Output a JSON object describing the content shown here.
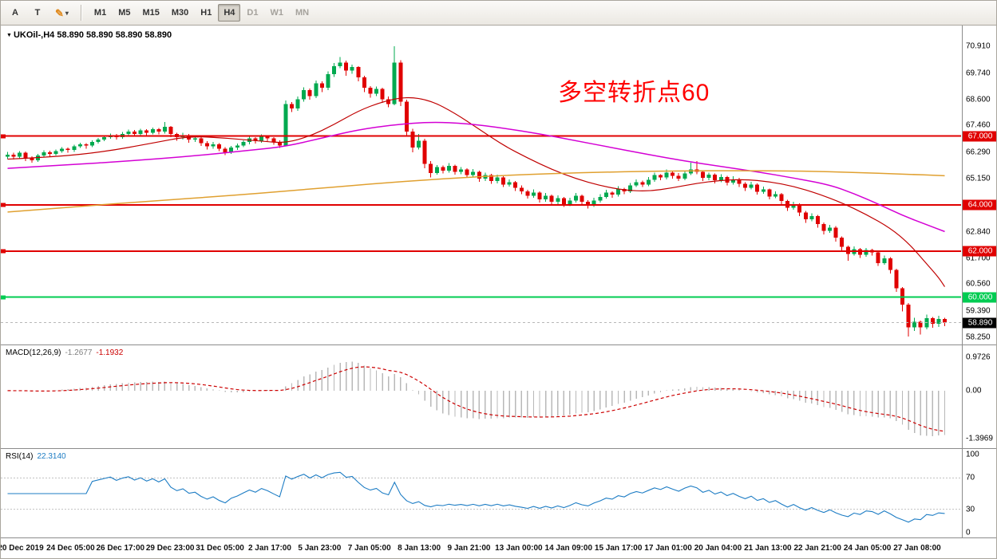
{
  "toolbar": {
    "text_tool_label": "A",
    "cursor_tool_label": "T",
    "icons": {
      "crayon": "✎",
      "dropdown_arrow": "▾",
      "symbol_dropdown": "▼"
    },
    "timeframes": [
      "M1",
      "M5",
      "M15",
      "M30",
      "H1",
      "H4",
      "D1",
      "W1",
      "MN"
    ],
    "active_timeframe": "H4",
    "muted_timeframes": [
      "D1",
      "W1",
      "MN"
    ]
  },
  "chart": {
    "symbol_ohlc_label": "UKOil-,H4  58.890 58.890 58.890 58.890"
  },
  "colors": {
    "bull": "#00a94f",
    "bear": "#e00000",
    "hline_red": "#e00000",
    "hline_green": "#00cc52",
    "current_badge_bg": "#000000",
    "current_line": "#b8b8b8",
    "annotation": "#ff0000",
    "macd_hist": "#b8b8b8",
    "macd_signal": "#cc0000",
    "rsi_line": "#1c7cc4",
    "rsi_level": "#c0c0c0"
  },
  "chart_data": {
    "type": "candlestick",
    "symbol": "UKOil-",
    "timeframe": "H4",
    "annotation": {
      "text": "多空转折点60",
      "color": "#ff0000"
    },
    "price_axis": {
      "min": 58.25,
      "max": 70.91,
      "ticks": [
        "70.910",
        "69.740",
        "68.600",
        "67.460",
        "66.290",
        "65.150",
        "64.000",
        "62.840",
        "61.700",
        "60.560",
        "59.390",
        "58.250"
      ]
    },
    "time_axis": [
      "20 Dec 2019",
      "24 Dec 05:00",
      "26 Dec 17:00",
      "29 Dec 23:00",
      "31 Dec 05:00",
      "2 Jan 17:00",
      "5 Jan 23:00",
      "7 Jan 05:00",
      "8 Jan 13:00",
      "9 Jan 21:00",
      "13 Jan 00:00",
      "14 Jan 09:00",
      "15 Jan 17:00",
      "17 Jan 01:00",
      "20 Jan 04:00",
      "21 Jan 13:00",
      "22 Jan 21:00",
      "24 Jan 05:00",
      "27 Jan 08:00"
    ],
    "hlines": [
      {
        "price": 67.0,
        "label": "67.000",
        "color": "#e00000"
      },
      {
        "price": 64.0,
        "label": "64.000",
        "color": "#e00000"
      },
      {
        "price": 62.0,
        "label": "62.000",
        "color": "#e00000"
      },
      {
        "price": 60.0,
        "label": "60.000",
        "color": "#00cc52"
      }
    ],
    "current_price": {
      "value": 58.89,
      "label": "58.890"
    },
    "moving_averages": [
      {
        "name": "ma-fast-red",
        "color": "#c00000",
        "width": 1.2,
        "points": [
          [
            0,
            66.0
          ],
          [
            8,
            66.1
          ],
          [
            16,
            66.32
          ],
          [
            24,
            66.7
          ],
          [
            30,
            67.0
          ],
          [
            36,
            66.92
          ],
          [
            42,
            66.78
          ],
          [
            46,
            66.7
          ],
          [
            50,
            67.0
          ],
          [
            54,
            67.5
          ],
          [
            58,
            68.1
          ],
          [
            62,
            68.5
          ],
          [
            66,
            68.72
          ],
          [
            70,
            68.55
          ],
          [
            74,
            68.0
          ],
          [
            78,
            67.3
          ],
          [
            82,
            66.6
          ],
          [
            86,
            66.05
          ],
          [
            90,
            65.55
          ],
          [
            94,
            65.15
          ],
          [
            98,
            64.85
          ],
          [
            102,
            64.65
          ],
          [
            106,
            64.6
          ],
          [
            110,
            64.75
          ],
          [
            114,
            64.95
          ],
          [
            118,
            65.08
          ],
          [
            122,
            65.12
          ],
          [
            126,
            65.02
          ],
          [
            130,
            64.82
          ],
          [
            134,
            64.5
          ],
          [
            138,
            64.1
          ],
          [
            142,
            63.6
          ],
          [
            146,
            63.0
          ],
          [
            149,
            62.35
          ],
          [
            152,
            61.45
          ],
          [
            154,
            60.85
          ],
          [
            155,
            60.45
          ]
        ]
      },
      {
        "name": "ma-mid-magenta",
        "color": "#d400d4",
        "width": 1.5,
        "points": [
          [
            0,
            65.6
          ],
          [
            10,
            65.75
          ],
          [
            20,
            65.92
          ],
          [
            30,
            66.12
          ],
          [
            40,
            66.38
          ],
          [
            46,
            66.55
          ],
          [
            52,
            66.92
          ],
          [
            58,
            67.28
          ],
          [
            64,
            67.5
          ],
          [
            70,
            67.62
          ],
          [
            76,
            67.55
          ],
          [
            82,
            67.35
          ],
          [
            88,
            67.1
          ],
          [
            94,
            66.8
          ],
          [
            100,
            66.5
          ],
          [
            106,
            66.2
          ],
          [
            112,
            65.92
          ],
          [
            118,
            65.68
          ],
          [
            124,
            65.45
          ],
          [
            130,
            65.18
          ],
          [
            136,
            64.88
          ],
          [
            140,
            64.5
          ],
          [
            144,
            64.05
          ],
          [
            148,
            63.55
          ],
          [
            152,
            63.15
          ],
          [
            155,
            62.85
          ]
        ]
      },
      {
        "name": "ma-slow-orange",
        "color": "#e0a030",
        "width": 1.5,
        "points": [
          [
            0,
            63.7
          ],
          [
            12,
            63.95
          ],
          [
            24,
            64.18
          ],
          [
            36,
            64.4
          ],
          [
            48,
            64.65
          ],
          [
            60,
            64.92
          ],
          [
            72,
            65.15
          ],
          [
            84,
            65.32
          ],
          [
            96,
            65.42
          ],
          [
            108,
            65.48
          ],
          [
            120,
            65.5
          ],
          [
            132,
            65.48
          ],
          [
            140,
            65.42
          ],
          [
            148,
            65.35
          ],
          [
            155,
            65.28
          ]
        ]
      }
    ],
    "ohlc": [
      [
        66.1,
        66.32,
        66.0,
        66.2
      ],
      [
        66.2,
        66.28,
        65.98,
        66.1
      ],
      [
        66.1,
        66.35,
        66.02,
        66.28
      ],
      [
        66.28,
        66.33,
        65.92,
        66.05
      ],
      [
        66.05,
        66.12,
        65.85,
        65.95
      ],
      [
        65.95,
        66.22,
        65.88,
        66.15
      ],
      [
        66.15,
        66.38,
        66.08,
        66.3
      ],
      [
        66.3,
        66.36,
        66.1,
        66.22
      ],
      [
        66.22,
        66.42,
        66.15,
        66.35
      ],
      [
        66.35,
        66.52,
        66.28,
        66.45
      ],
      [
        66.45,
        66.5,
        66.28,
        66.4
      ],
      [
        66.4,
        66.62,
        66.32,
        66.55
      ],
      [
        66.55,
        66.72,
        66.48,
        66.65
      ],
      [
        66.65,
        66.7,
        66.45,
        66.6
      ],
      [
        66.6,
        66.82,
        66.52,
        66.75
      ],
      [
        66.75,
        66.92,
        66.68,
        66.85
      ],
      [
        66.85,
        67.02,
        66.78,
        66.95
      ],
      [
        66.95,
        67.12,
        66.88,
        67.05
      ],
      [
        67.05,
        67.1,
        66.85,
        66.95
      ],
      [
        66.95,
        67.18,
        66.88,
        67.1
      ],
      [
        67.1,
        67.28,
        67.02,
        67.2
      ],
      [
        67.2,
        67.26,
        66.98,
        67.1
      ],
      [
        67.1,
        67.32,
        67.0,
        67.25
      ],
      [
        67.25,
        67.3,
        67.02,
        67.15
      ],
      [
        67.15,
        67.38,
        67.08,
        67.3
      ],
      [
        67.3,
        67.35,
        67.08,
        67.2
      ],
      [
        67.2,
        67.62,
        67.12,
        67.4
      ],
      [
        67.4,
        67.45,
        66.95,
        67.1
      ],
      [
        67.1,
        67.15,
        66.8,
        66.95
      ],
      [
        66.95,
        67.15,
        66.85,
        67.05
      ],
      [
        67.05,
        67.1,
        66.72,
        66.85
      ],
      [
        66.85,
        67.0,
        66.75,
        66.9
      ],
      [
        66.9,
        66.95,
        66.58,
        66.7
      ],
      [
        66.7,
        66.78,
        66.42,
        66.55
      ],
      [
        66.55,
        66.75,
        66.45,
        66.65
      ],
      [
        66.65,
        66.7,
        66.35,
        66.45
      ],
      [
        66.45,
        66.52,
        66.18,
        66.3
      ],
      [
        66.3,
        66.58,
        66.22,
        66.5
      ],
      [
        66.5,
        66.68,
        66.4,
        66.6
      ],
      [
        66.6,
        66.82,
        66.52,
        66.75
      ],
      [
        66.75,
        66.98,
        66.65,
        66.9
      ],
      [
        66.9,
        66.96,
        66.68,
        66.8
      ],
      [
        66.8,
        67.08,
        66.72,
        67.0
      ],
      [
        67.0,
        67.05,
        66.78,
        66.9
      ],
      [
        66.9,
        66.95,
        66.62,
        66.75
      ],
      [
        66.75,
        66.82,
        66.48,
        66.6
      ],
      [
        66.6,
        68.55,
        66.55,
        68.4
      ],
      [
        68.4,
        68.48,
        68.05,
        68.2
      ],
      [
        68.2,
        68.72,
        68.1,
        68.6
      ],
      [
        68.6,
        69.12,
        68.5,
        69.0
      ],
      [
        69.0,
        69.08,
        68.58,
        68.75
      ],
      [
        68.75,
        69.42,
        68.65,
        69.3
      ],
      [
        69.3,
        69.38,
        68.92,
        69.1
      ],
      [
        69.1,
        69.82,
        69.0,
        69.7
      ],
      [
        69.7,
        70.18,
        69.58,
        70.05
      ],
      [
        70.05,
        70.45,
        69.95,
        70.2
      ],
      [
        70.2,
        70.28,
        69.62,
        69.85
      ],
      [
        69.85,
        70.12,
        69.72,
        70.0
      ],
      [
        70.0,
        70.05,
        69.38,
        69.55
      ],
      [
        69.55,
        69.62,
        68.92,
        69.1
      ],
      [
        69.1,
        69.18,
        68.68,
        68.85
      ],
      [
        68.85,
        69.15,
        68.75,
        69.05
      ],
      [
        69.05,
        69.1,
        68.45,
        68.6
      ],
      [
        68.6,
        68.72,
        68.25,
        68.4
      ],
      [
        68.4,
        70.91,
        68.35,
        70.2
      ],
      [
        70.2,
        70.3,
        68.3,
        68.5
      ],
      [
        68.5,
        68.58,
        67.0,
        67.2
      ],
      [
        67.2,
        67.32,
        66.3,
        66.5
      ],
      [
        66.5,
        67.1,
        66.42,
        66.8
      ],
      [
        66.8,
        66.88,
        65.6,
        65.8
      ],
      [
        65.8,
        65.92,
        65.2,
        65.4
      ],
      [
        65.4,
        65.75,
        65.32,
        65.65
      ],
      [
        65.65,
        65.72,
        65.38,
        65.5
      ],
      [
        65.5,
        65.82,
        65.42,
        65.7
      ],
      [
        65.7,
        65.76,
        65.32,
        65.45
      ],
      [
        65.45,
        65.66,
        65.35,
        65.55
      ],
      [
        65.55,
        65.6,
        65.18,
        65.3
      ],
      [
        65.3,
        65.56,
        65.22,
        65.45
      ],
      [
        65.45,
        65.5,
        65.02,
        65.15
      ],
      [
        65.15,
        65.42,
        65.05,
        65.3
      ],
      [
        65.3,
        65.36,
        64.92,
        65.05
      ],
      [
        65.05,
        65.32,
        64.95,
        65.2
      ],
      [
        65.2,
        65.25,
        64.78,
        64.9
      ],
      [
        64.9,
        65.12,
        64.8,
        65.0
      ],
      [
        65.0,
        65.05,
        64.62,
        64.75
      ],
      [
        64.75,
        64.85,
        64.48,
        64.6
      ],
      [
        64.6,
        64.66,
        64.28,
        64.4
      ],
      [
        64.4,
        64.68,
        64.32,
        64.55
      ],
      [
        64.55,
        64.6,
        64.12,
        64.25
      ],
      [
        64.25,
        64.52,
        64.15,
        64.4
      ],
      [
        64.4,
        64.45,
        64.02,
        64.15
      ],
      [
        64.15,
        64.42,
        64.05,
        64.3
      ],
      [
        64.3,
        64.35,
        63.92,
        64.05
      ],
      [
        64.05,
        64.32,
        63.95,
        64.2
      ],
      [
        64.2,
        64.52,
        64.12,
        64.4
      ],
      [
        64.4,
        64.45,
        64.02,
        64.15
      ],
      [
        64.15,
        64.22,
        63.85,
        64.0
      ],
      [
        64.0,
        64.32,
        63.92,
        64.2
      ],
      [
        64.2,
        64.48,
        64.12,
        64.35
      ],
      [
        64.35,
        64.66,
        64.28,
        64.55
      ],
      [
        64.55,
        64.6,
        64.32,
        64.45
      ],
      [
        64.45,
        64.82,
        64.38,
        64.7
      ],
      [
        64.7,
        64.76,
        64.48,
        64.6
      ],
      [
        64.6,
        64.96,
        64.52,
        64.85
      ],
      [
        64.85,
        65.12,
        64.78,
        65.0
      ],
      [
        65.0,
        65.06,
        64.78,
        64.9
      ],
      [
        64.9,
        65.22,
        64.82,
        65.1
      ],
      [
        65.1,
        65.42,
        65.02,
        65.3
      ],
      [
        65.3,
        65.35,
        65.08,
        65.2
      ],
      [
        65.2,
        65.55,
        65.12,
        65.42
      ],
      [
        65.42,
        65.5,
        65.15,
        65.28
      ],
      [
        65.28,
        65.4,
        65.05,
        65.15
      ],
      [
        65.15,
        65.48,
        65.08,
        65.38
      ],
      [
        65.38,
        65.85,
        65.3,
        65.55
      ],
      [
        65.55,
        65.92,
        65.35,
        65.45
      ],
      [
        65.45,
        65.52,
        65.05,
        65.18
      ],
      [
        65.18,
        65.42,
        65.08,
        65.32
      ],
      [
        65.32,
        65.38,
        64.95,
        65.08
      ],
      [
        65.08,
        65.35,
        65.0,
        65.22
      ],
      [
        65.22,
        65.28,
        64.85,
        64.98
      ],
      [
        64.98,
        65.25,
        64.9,
        65.12
      ],
      [
        65.12,
        65.18,
        64.78,
        64.92
      ],
      [
        64.92,
        65.0,
        64.62,
        64.75
      ],
      [
        64.75,
        65.02,
        64.68,
        64.9
      ],
      [
        64.9,
        64.95,
        64.45,
        64.58
      ],
      [
        64.58,
        64.8,
        64.5,
        64.68
      ],
      [
        64.68,
        64.72,
        64.25,
        64.38
      ],
      [
        64.38,
        64.6,
        64.3,
        64.48
      ],
      [
        64.48,
        64.52,
        64.02,
        64.18
      ],
      [
        64.18,
        64.24,
        63.74,
        63.88
      ],
      [
        63.88,
        64.14,
        63.8,
        64.02
      ],
      [
        64.02,
        64.08,
        63.52,
        63.68
      ],
      [
        63.68,
        63.74,
        63.22,
        63.38
      ],
      [
        63.38,
        63.64,
        63.3,
        63.52
      ],
      [
        63.52,
        63.58,
        63.02,
        63.18
      ],
      [
        63.18,
        63.24,
        62.72,
        62.88
      ],
      [
        62.88,
        63.14,
        62.8,
        63.02
      ],
      [
        63.02,
        63.08,
        62.42,
        62.58
      ],
      [
        62.58,
        62.64,
        62.0,
        62.18
      ],
      [
        62.18,
        62.24,
        61.58,
        61.88
      ],
      [
        61.88,
        62.2,
        61.8,
        62.08
      ],
      [
        62.08,
        62.14,
        61.7,
        61.84
      ],
      [
        61.84,
        62.14,
        61.76,
        62.04
      ],
      [
        62.04,
        62.1,
        61.8,
        61.94
      ],
      [
        61.94,
        62.0,
        61.36,
        61.48
      ],
      [
        61.48,
        61.8,
        61.4,
        61.68
      ],
      [
        61.68,
        61.74,
        61.02,
        61.18
      ],
      [
        61.18,
        61.24,
        60.22,
        60.38
      ],
      [
        60.38,
        60.44,
        59.38,
        59.68
      ],
      [
        59.68,
        59.74,
        58.28,
        58.68
      ],
      [
        58.68,
        59.1,
        58.52,
        58.92
      ],
      [
        58.92,
        58.98,
        58.38,
        58.68
      ],
      [
        58.68,
        59.24,
        58.6,
        59.08
      ],
      [
        59.08,
        59.14,
        58.66,
        58.84
      ],
      [
        58.84,
        59.18,
        58.7,
        59.04
      ],
      [
        59.04,
        59.1,
        58.74,
        58.89
      ]
    ],
    "indicators": {
      "macd": {
        "label": "MACD(12,26,9)",
        "fast": 12,
        "slow": 26,
        "signal": 9,
        "value_main": "-1.2677",
        "value_signal": "-1.1932",
        "scale_max": 0.9726,
        "scale_min": -1.3969,
        "scale_labels": [
          "0.9726",
          "0.00",
          "-1.3969"
        ]
      },
      "rsi": {
        "label": "RSI(14)",
        "period": 14,
        "value": "22.3140",
        "levels": [
          70,
          30
        ],
        "scale_labels": [
          "100",
          "70",
          "30",
          "0"
        ]
      }
    }
  }
}
